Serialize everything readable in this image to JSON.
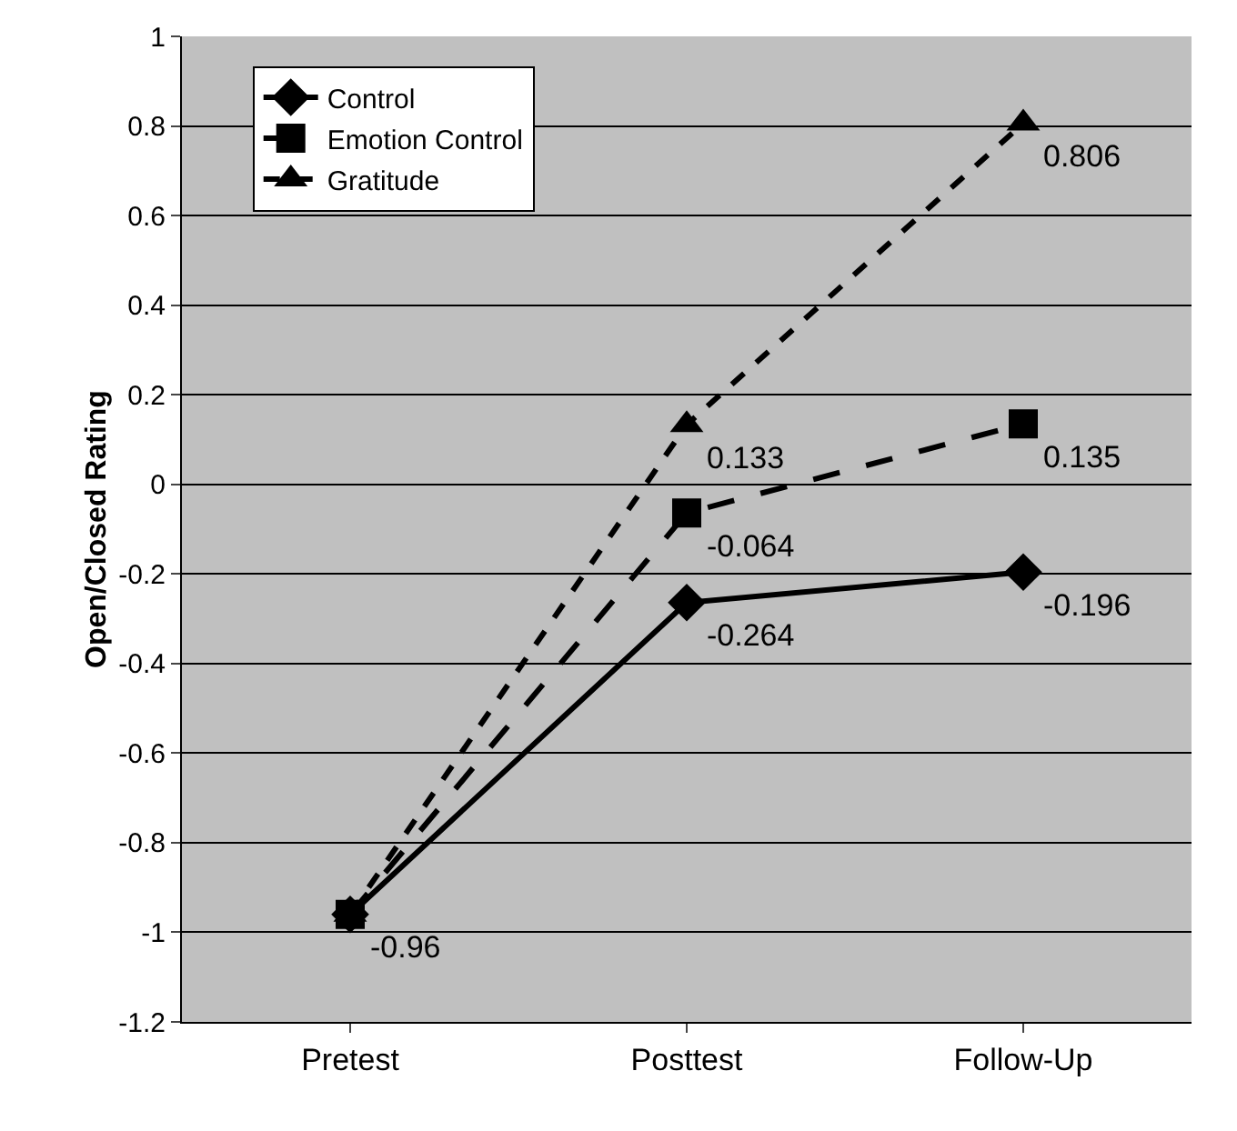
{
  "chart_data": {
    "type": "line",
    "ylabel": "Open/Closed Rating",
    "categories": [
      "Pretest",
      "Posttest",
      "Follow-Up"
    ],
    "series": [
      {
        "name": "Control",
        "color": "#000000",
        "marker": "diamond",
        "line_style": "solid",
        "values": [
          -0.96,
          -0.264,
          -0.196
        ],
        "value_labels": [
          "-0.96",
          "-0.264",
          "-0.196"
        ]
      },
      {
        "name": "Emotion Control",
        "color": "#000000",
        "marker": "square",
        "line_style": "dashed",
        "values": [
          -0.96,
          -0.064,
          0.135
        ],
        "value_labels": [
          null,
          "-0.064",
          "0.135"
        ]
      },
      {
        "name": "Gratitude",
        "color": "#000000",
        "marker": "triangle",
        "line_style": "dotted",
        "values": [
          -0.96,
          0.133,
          0.806
        ],
        "value_labels": [
          null,
          "0.133",
          "0.806"
        ]
      }
    ],
    "ylim": [
      -1.2,
      1
    ],
    "yticks": [
      -1.2,
      -1,
      -0.8,
      -0.6,
      -0.4,
      -0.2,
      0,
      0.2,
      0.4,
      0.6,
      0.8,
      1
    ],
    "grid": "y",
    "legend": "top left"
  }
}
